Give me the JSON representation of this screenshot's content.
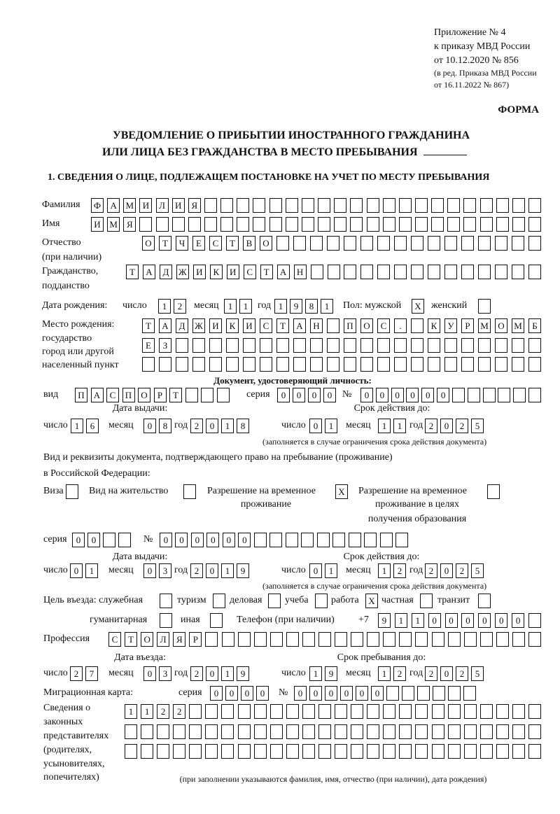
{
  "header": {
    "appendix": "Приложение № 4",
    "order": "к приказу МВД России",
    "order_date": "от 10.12.2020 № 856",
    "edition": "(в ред. Приказа МВД России",
    "edition_date": "от 16.11.2022 № 867)",
    "form_label": "ФОРМА",
    "title_line1": "УВЕДОМЛЕНИЕ О ПРИБЫТИИ ИНОСТРАННОГО ГРАЖДАНИНА",
    "title_line2": "ИЛИ ЛИЦА БЕЗ ГРАЖДАНСТВА В МЕСТО ПРЕБЫВАНИЯ",
    "section1": "1. СВЕДЕНИЯ О ЛИЦЕ, ПОДЛЕЖАЩЕМ ПОСТАНОВКЕ НА УЧЕТ ПО МЕСТУ ПРЕБЫВАНИЯ"
  },
  "labels": {
    "surname": "Фамилия",
    "name": "Имя",
    "patronymic": "Отчество",
    "if_any": "(при наличии)",
    "citizenship": "Гражданство,",
    "subject": "подданство",
    "birth_date": "Дата рождения:",
    "day": "число",
    "month": "месяц",
    "year": "год",
    "sex_male": "Пол: мужской",
    "sex_female": "женский",
    "birthplace": "Место рождения:",
    "state": "государство",
    "city": "город или другой",
    "settlement": "населенный пункт",
    "id_doc": "Документ, удостоверяющий личность:",
    "kind": "вид",
    "series": "серия",
    "number": "№",
    "issue_date": "Дата выдачи:",
    "valid_until": "Срок действия до:",
    "valid_note": "(заполняется в случае ограничения срока действия документа)",
    "residence_doc_1": "Вид и реквизиты документа, подтверждающего право на пребывание (проживание)",
    "residence_doc_2": "в Российской Федерации:",
    "visa": "Виза",
    "residence_permit": "Вид на жительство",
    "temp_permit_1": "Разрешение на временное",
    "temp_permit_2": "проживание",
    "edu_permit_1": "Разрешение на временное",
    "edu_permit_2": "проживание в целях",
    "edu_permit_3": "получения образования",
    "purpose": "Цель въезда: служебная",
    "tourism": "туризм",
    "business": "деловая",
    "study": "учеба",
    "work": "работа",
    "private": "частная",
    "transit": "транзит",
    "humanitarian": "гуманитарная",
    "other": "иная",
    "phone": "Телефон (при наличии)",
    "phone_prefix": "+7",
    "profession": "Профессия",
    "entry_date": "Дата въезда:",
    "stay_until": "Срок пребывания до:",
    "migration_card": "Миграционная карта:",
    "legal_rep_1": "Сведения о",
    "legal_rep_2": "законных",
    "legal_rep_3": "представителях",
    "legal_rep_4": "(родителях,",
    "legal_rep_5": "усыновителях,",
    "legal_rep_6": "попечителях)",
    "legal_rep_note": "(при заполнении указываются фамилия, имя, отчество (при наличии), дата рождения)"
  },
  "values": {
    "surname": "ФАМИЛИЯ",
    "name": "ИМЯ",
    "patronymic": "ОТЧЕСТВО",
    "citizenship": "ТАДЖИКИСТАН",
    "birth_day": "12",
    "birth_month": "11",
    "birth_year": "1981",
    "sex_male": "X",
    "sex_female": "",
    "birthplace_1": "ТАДЖИКИСТАН ПОС. КУРМОМБ",
    "birthplace_2": "ЕЗ",
    "birthplace_3": "",
    "id_kind": "ПАСПОРТ",
    "id_series": "0000",
    "id_number": "000000",
    "id_issue_day": "16",
    "id_issue_month": "08",
    "id_issue_year": "2018",
    "id_valid_day": "01",
    "id_valid_month": "11",
    "id_valid_year": "2025",
    "visa": "",
    "residence_permit": "",
    "temp_permit": "X",
    "edu_permit": "",
    "res_series": "00",
    "res_number": "000000",
    "res_issue_day": "01",
    "res_issue_month": "03",
    "res_issue_year": "2019",
    "res_valid_day": "01",
    "res_valid_month": "12",
    "res_valid_year": "2025",
    "purpose_official": "",
    "purpose_tourism": "",
    "purpose_business": "",
    "purpose_study": "",
    "purpose_work": "X",
    "purpose_private": "",
    "purpose_transit": "",
    "purpose_humanitarian": "",
    "purpose_other": "",
    "phone": "911000000",
    "profession": "СТОЛЯР",
    "entry_day": "27",
    "entry_month": "03",
    "entry_year": "2019",
    "stay_day": "19",
    "stay_month": "12",
    "stay_year": "2025",
    "mig_series": "0000",
    "mig_number": "000000",
    "legal_rep_1": "1122",
    "legal_rep_2": "",
    "legal_rep_3": ""
  }
}
